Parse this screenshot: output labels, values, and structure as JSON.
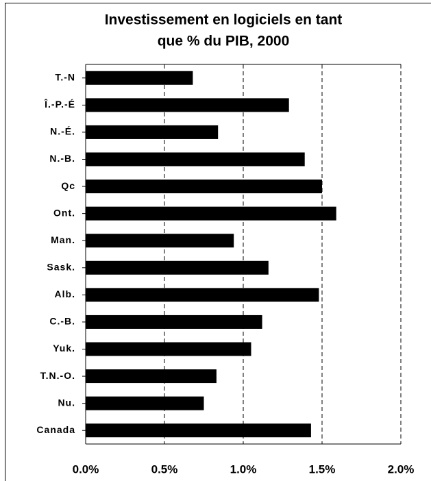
{
  "chart_data": {
    "type": "barh",
    "title": [
      "Investissement en logiciels en tant",
      "que % du PIB, 2000"
    ],
    "categories": [
      "T.-N",
      "Î.-P.-É",
      "N.-É.",
      "N.-B.",
      "Qc",
      "Ont.",
      "Man.",
      "Sask.",
      "Alb.",
      "C.-B.",
      "Yuk.",
      "T.N.-O.",
      "Nu.",
      "Canada"
    ],
    "values": [
      0.68,
      1.29,
      0.84,
      1.39,
      1.5,
      1.59,
      0.94,
      1.16,
      1.48,
      1.12,
      1.05,
      0.83,
      0.75,
      1.43
    ],
    "color": "#000000",
    "xlim": [
      0,
      2
    ],
    "xticks": [
      {
        "value": 0,
        "label": "0.0%"
      },
      {
        "value": 0.5,
        "label": "0.5%"
      },
      {
        "value": 1,
        "label": "1.0%"
      },
      {
        "value": 1.5,
        "label": "1.5%"
      },
      {
        "value": 2,
        "label": "2.0%"
      }
    ],
    "grid": true
  }
}
